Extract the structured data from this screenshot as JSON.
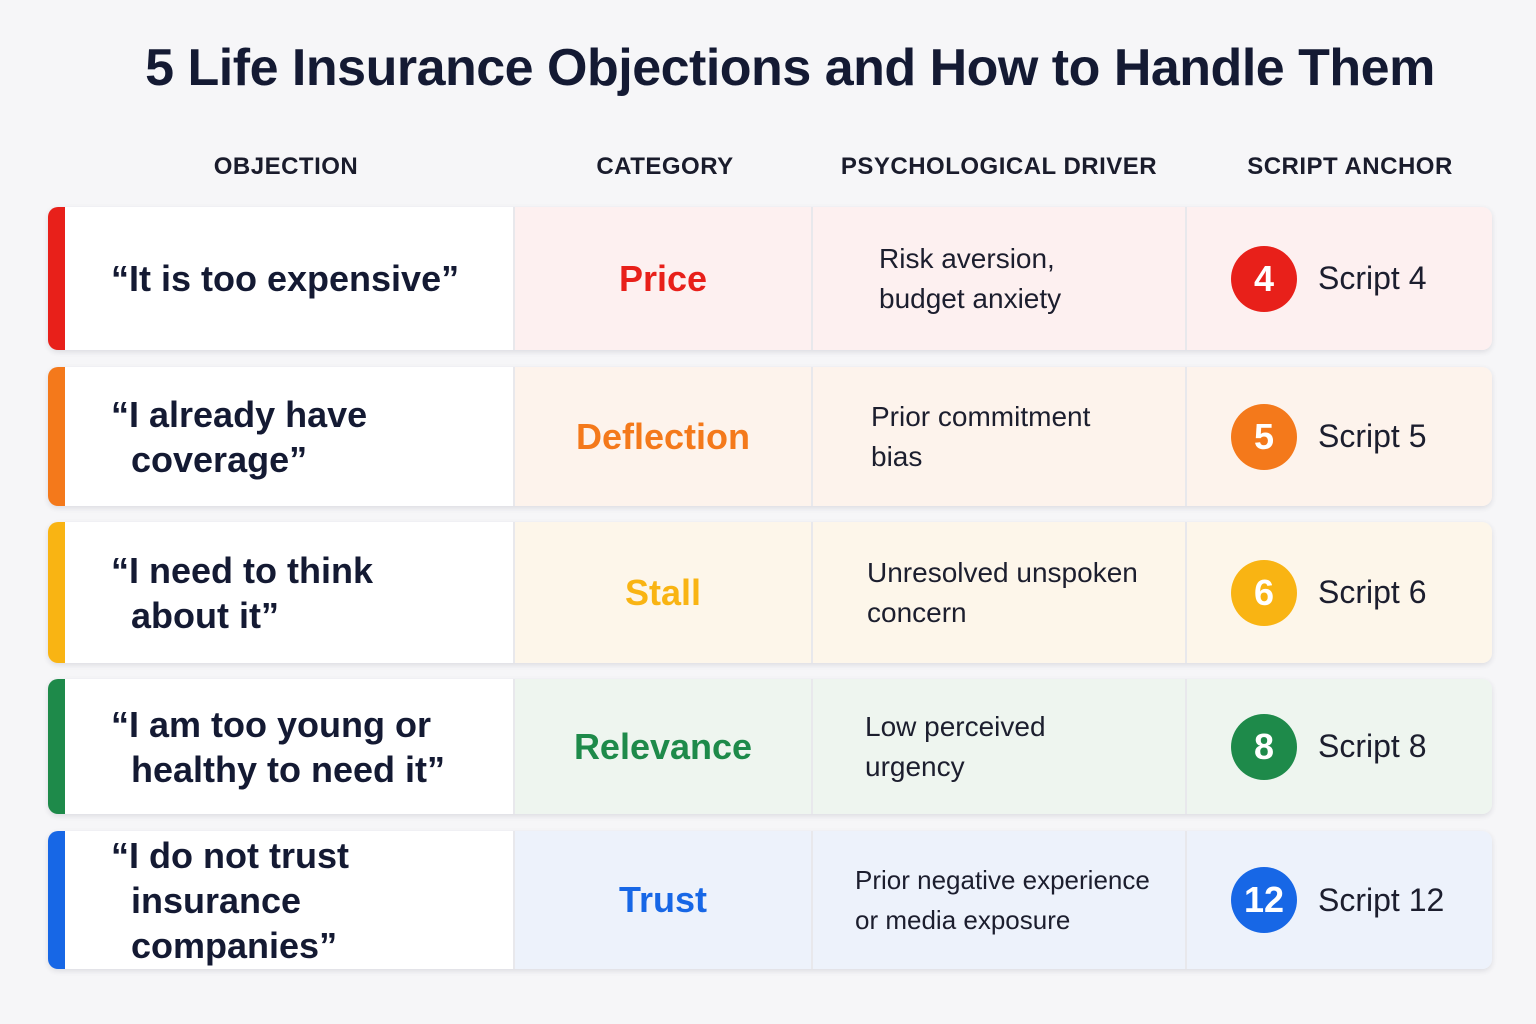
{
  "title": "5 Life Insurance Objections and How to Handle Them",
  "columns": {
    "objection": "OBJECTION",
    "category": "CATEGORY",
    "driver": "PSYCHOLOGICAL DRIVER",
    "script": "SCRIPT ANCHOR"
  },
  "rows": [
    {
      "objection": "“It is too expensive”",
      "category": "Price",
      "driver": "Risk aversion, budget anxiety",
      "badge": "4",
      "script": "Script 4",
      "accent_color": "#e8201a",
      "tint_color": "#fdf0f0"
    },
    {
      "objection": "“I already have coverage”",
      "category": "Deflection",
      "driver": "Prior commitment bias",
      "badge": "5",
      "script": "Script 5",
      "accent_color": "#f4791b",
      "tint_color": "#fdf3ec"
    },
    {
      "objection": "“I need to think about it”",
      "category": "Stall",
      "driver": "Unresolved unspoken concern",
      "badge": "6",
      "script": "Script 6",
      "accent_color": "#f9b413",
      "tint_color": "#fdf6ea"
    },
    {
      "objection": "“I am too young or healthy to need it”",
      "category": "Relevance",
      "driver": "Low perceived urgency",
      "badge": "8",
      "script": "Script 8",
      "accent_color": "#1e8a4a",
      "tint_color": "#eef5ef"
    },
    {
      "objection": "“I do not trust insurance companies”",
      "category": "Trust",
      "driver": "Prior negative experience or media exposure",
      "badge": "12",
      "script": "Script 12",
      "accent_color": "#1767e6",
      "tint_color": "#edf2fb"
    }
  ]
}
